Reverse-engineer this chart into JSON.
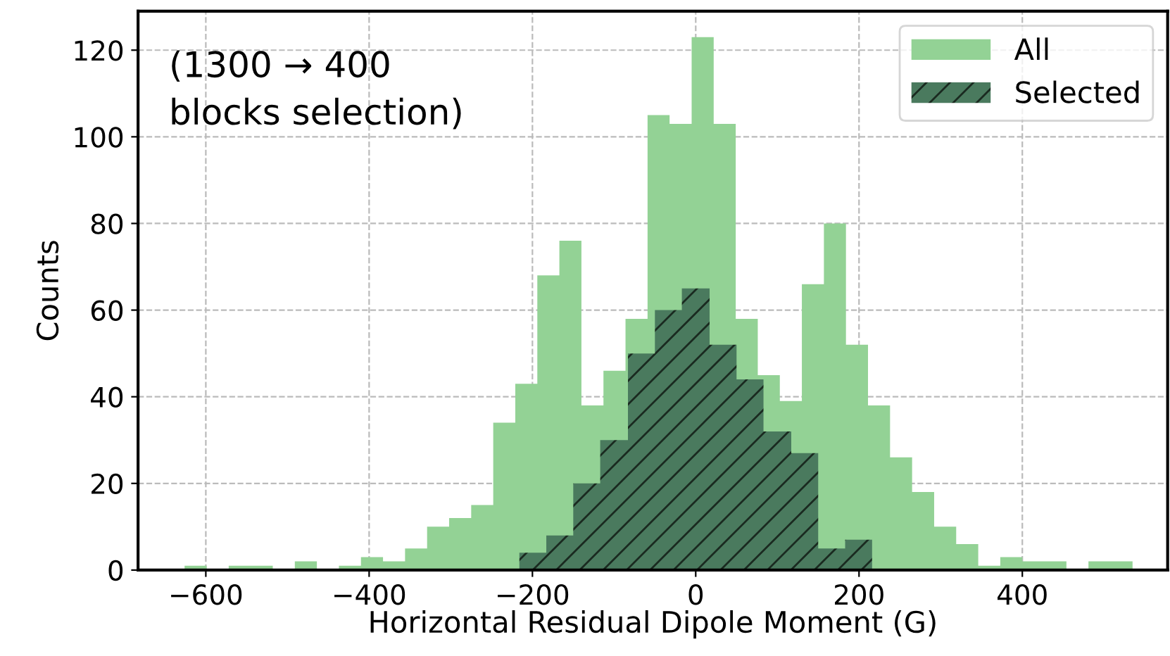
{
  "chart_data": {
    "type": "histogram",
    "xlabel": "Horizontal Residual Dipole Moment (G)",
    "ylabel": "Counts",
    "annotations": [
      "(1300 → 400\nblocks selection)"
    ],
    "xlim": [
      -683,
      578
    ],
    "xticks": [
      -600,
      -400,
      -200,
      0,
      200,
      400
    ],
    "ylim": [
      0,
      129
    ],
    "yticks": [
      0,
      20,
      40,
      60,
      80,
      100,
      120
    ],
    "grid": true,
    "legend": "top right",
    "bins": [
      -626,
      -599,
      -572,
      -545,
      -518,
      -491,
      -464,
      -437,
      -410,
      -383,
      -356,
      -329,
      -302,
      -275,
      -248,
      -221,
      -194,
      -167,
      -140,
      -113,
      -86,
      -59,
      -32,
      -5,
      22,
      49,
      76,
      103,
      130,
      157,
      184,
      211,
      238,
      265,
      292,
      319,
      346,
      373,
      400,
      427,
      454,
      481,
      508,
      535
    ],
    "series": [
      {
        "name": "All",
        "color": "#93d295",
        "values": [
          1,
          0,
          1,
          1,
          0,
          2,
          0,
          1,
          3,
          2,
          5,
          10,
          12,
          15,
          34,
          43,
          68,
          76,
          38,
          46,
          58,
          105,
          103,
          123,
          103,
          58,
          45,
          39,
          66,
          80,
          52,
          38,
          26,
          18,
          10,
          6,
          1,
          3,
          2,
          2,
          0,
          2,
          2
        ]
      },
      {
        "name": "Selected",
        "color": "#4a7a5e",
        "bins": [
          -216,
          -183,
          -150,
          -117,
          -83,
          -50,
          -17,
          17,
          50,
          83,
          117,
          150,
          183,
          216
        ],
        "values": [
          4,
          8,
          20,
          30,
          50,
          60,
          65,
          52,
          44,
          32,
          27,
          5,
          7
        ]
      }
    ]
  }
}
